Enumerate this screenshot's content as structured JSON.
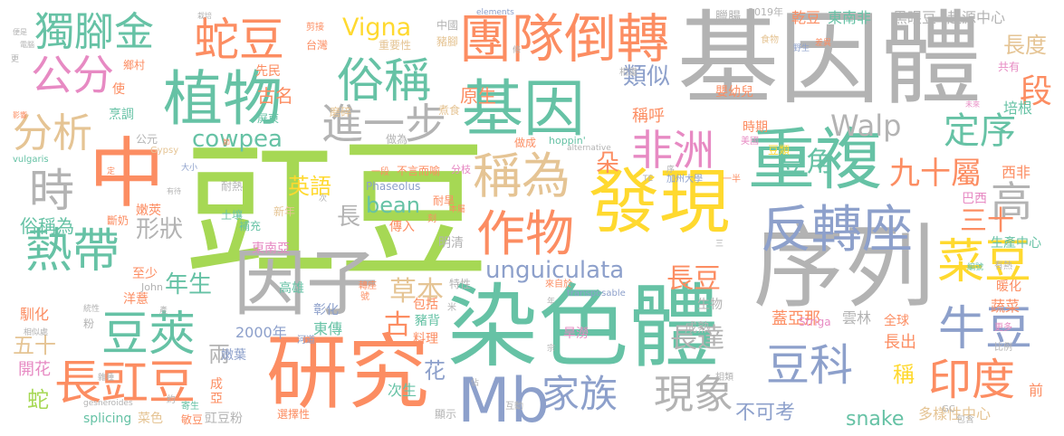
{
  "palette": {
    "green": "#66c2a5",
    "orange": "#fc8d62",
    "blue": "#8da0cb",
    "pink": "#e78ac3",
    "lime": "#a6d854",
    "yellow": "#ffd92f",
    "tan": "#e5c494",
    "gray": "#b3b3b3"
  },
  "words": [
    {
      "text": "豇豆",
      "color": "#a6d854"
    },
    {
      "text": "中",
      "color": "#fc8d62"
    },
    {
      "text": "基因體",
      "color": "#b3b3b3"
    },
    {
      "text": "染色體",
      "color": "#66c2a5"
    },
    {
      "text": "序列",
      "color": "#b3b3b3"
    },
    {
      "text": "發現",
      "color": "#ffd92f"
    },
    {
      "text": "研究",
      "color": "#fc8d62"
    },
    {
      "text": "團隊倒轉",
      "color": "#fc8d62"
    },
    {
      "text": "基因",
      "color": "#66c2a5"
    },
    {
      "text": "重複",
      "color": "#66c2a5"
    },
    {
      "text": "植物",
      "color": "#66c2a5"
    },
    {
      "text": "因子",
      "color": "#b3b3b3"
    },
    {
      "text": "Mb",
      "color": "#8da0cb"
    },
    {
      "text": "反轉座",
      "color": "#8da0cb"
    },
    {
      "text": "作物",
      "color": "#fc8d62"
    },
    {
      "text": "稱為",
      "color": "#e5c494"
    },
    {
      "text": "長豇豆",
      "color": "#fc8d62"
    },
    {
      "text": "豆莢",
      "color": "#66c2a5"
    },
    {
      "text": "熱帶",
      "color": "#66c2a5"
    },
    {
      "text": "蛇豆",
      "color": "#fc8d62"
    },
    {
      "text": "俗稱",
      "color": "#66c2a5"
    },
    {
      "text": "進一步",
      "color": "#b3b3b3"
    },
    {
      "text": "非洲",
      "color": "#e78ac3"
    },
    {
      "text": "菜豆",
      "color": "#ffd92f"
    },
    {
      "text": "牛豆",
      "color": "#8da0cb"
    },
    {
      "text": "印度",
      "color": "#fc8d62"
    },
    {
      "text": "豆科",
      "color": "#8da0cb"
    },
    {
      "text": "現象",
      "color": "#b3b3b3"
    },
    {
      "text": "家族",
      "color": "#8da0cb"
    },
    {
      "text": "獨腳金",
      "color": "#66c2a5"
    },
    {
      "text": "公分",
      "color": "#e78ac3"
    },
    {
      "text": "分析",
      "color": "#e5c494"
    },
    {
      "text": "時",
      "color": "#b3b3b3"
    },
    {
      "text": "定序",
      "color": "#66c2a5"
    },
    {
      "text": "九十屬",
      "color": "#fc8d62"
    },
    {
      "text": "高",
      "color": "#b3b3b3"
    },
    {
      "text": "段",
      "color": "#fc8d62"
    },
    {
      "text": "長度",
      "color": "#e5c494"
    },
    {
      "text": "Vigna",
      "color": "#ffd92f"
    },
    {
      "text": "Walp",
      "color": "#b3b3b3"
    },
    {
      "text": "cowpea",
      "color": "#66c2a5"
    },
    {
      "text": "unguiculata",
      "color": "#8da0cb"
    },
    {
      "text": "bean",
      "color": "#66c2a5"
    },
    {
      "text": "snake",
      "color": "#66c2a5"
    },
    {
      "text": "英語",
      "color": "#ffd92f"
    },
    {
      "text": "長",
      "color": "#b3b3b3"
    },
    {
      "text": "形狀",
      "color": "#b3b3b3"
    },
    {
      "text": "俗稱為",
      "color": "#66c2a5"
    },
    {
      "text": "年生",
      "color": "#66c2a5"
    },
    {
      "text": "草本",
      "color": "#e5c494"
    },
    {
      "text": "古",
      "color": "#fc8d62"
    },
    {
      "text": "長豆",
      "color": "#fc8d62"
    },
    {
      "text": "長達",
      "color": "#b3b3b3"
    },
    {
      "text": "三十",
      "color": "#fc8d62"
    },
    {
      "text": "不可考",
      "color": "#8da0cb"
    },
    {
      "text": "五十",
      "color": "#e5c494"
    },
    {
      "text": "兩",
      "color": "#b3b3b3"
    },
    {
      "text": "豆角",
      "color": "#66c2a5"
    },
    {
      "text": "類似",
      "color": "#8da0cb"
    },
    {
      "text": "古名",
      "color": "#fc8d62"
    },
    {
      "text": "原生",
      "color": "#fc8d62"
    },
    {
      "text": "稱呼",
      "color": "#fc8d62"
    },
    {
      "text": "朵",
      "color": "#fc8d62"
    },
    {
      "text": "花",
      "color": "#8da0cb"
    },
    {
      "text": "稱",
      "color": "#ffd92f"
    },
    {
      "text": "蛇",
      "color": "#a6d854"
    },
    {
      "text": "開花",
      "color": "#e78ac3"
    },
    {
      "text": "馴化",
      "color": "#fc8d62"
    },
    {
      "text": "2000年",
      "color": "#8da0cb"
    },
    {
      "text": "東傳",
      "color": "#66c2a5"
    },
    {
      "text": "蓋亞那",
      "color": "#fc8d62"
    },
    {
      "text": "長出",
      "color": "#fc8d62"
    },
    {
      "text": "雲林",
      "color": "#b3b3b3"
    },
    {
      "text": "全球",
      "color": "#fc8d62"
    },
    {
      "text": "蔬菜",
      "color": "#fc8d62"
    },
    {
      "text": "多樣性中心",
      "color": "#e5c494"
    },
    {
      "text": "生產中心",
      "color": "#66c2a5"
    },
    {
      "text": "西非",
      "color": "#fc8d62"
    },
    {
      "text": "巴西",
      "color": "#e78ac3"
    },
    {
      "text": "東南非",
      "color": "#66c2a5"
    },
    {
      "text": "乾豆",
      "color": "#fc8d62"
    },
    {
      "text": "黑眼豆",
      "color": "#b3b3b3"
    },
    {
      "text": "起源中心",
      "color": "#b3b3b3"
    },
    {
      "text": "臘腸",
      "color": "#b3b3b3"
    },
    {
      "text": "2019年",
      "color": "#b3b3b3"
    },
    {
      "text": "時期",
      "color": "#fc8d62"
    },
    {
      "text": "豆類",
      "color": "#ffd92f"
    },
    {
      "text": "美國",
      "color": "#e78ac3"
    },
    {
      "text": "嬰幼兒",
      "color": "#fc8d62"
    },
    {
      "text": "培根",
      "color": "#66c2a5"
    },
    {
      "text": "共有",
      "color": "#e78ac3"
    },
    {
      "text": "前",
      "color": "#fc8d62"
    },
    {
      "text": "暖化",
      "color": "#fc8d62"
    },
    {
      "text": "有熱",
      "color": "#b3b3b3"
    },
    {
      "text": "Striga",
      "color": "#e78ac3"
    },
    {
      "text": "旱澇",
      "color": "#e78ac3"
    },
    {
      "text": "更多",
      "color": "#e78ac3"
    },
    {
      "text": "比例",
      "color": "#b3b3b3"
    },
    {
      "text": "相類",
      "color": "#b3b3b3"
    },
    {
      "text": "包含",
      "color": "#b3b3b3"
    },
    {
      "text": "GC",
      "color": "#b3b3b3"
    },
    {
      "text": "互動",
      "color": "#b3b3b3"
    },
    {
      "text": "顯示",
      "color": "#b3b3b3"
    },
    {
      "text": "次生",
      "color": "#66c2a5"
    },
    {
      "text": "敏豆",
      "color": "#fc8d62"
    },
    {
      "text": "菜色",
      "color": "#e5c494"
    },
    {
      "text": "豇豆粉",
      "color": "#b3b3b3"
    },
    {
      "text": "選擇性",
      "color": "#fc8d62"
    },
    {
      "text": "splicing",
      "color": "#66c2a5"
    },
    {
      "text": "gesneroides",
      "color": "#b3b3b3"
    },
    {
      "text": "約",
      "color": "#b3b3b3"
    },
    {
      "text": "寄生",
      "color": "#66c2a5"
    },
    {
      "text": "亞",
      "color": "#fc8d62"
    },
    {
      "text": "成",
      "color": "#fc8d62"
    },
    {
      "text": "嫩葉",
      "color": "#8da0cb"
    },
    {
      "text": "河道",
      "color": "#8da0cb"
    },
    {
      "text": "彰化",
      "color": "#8da0cb"
    },
    {
      "text": "高雄",
      "color": "#66c2a5"
    },
    {
      "text": "成熟",
      "color": "#b3b3b3"
    },
    {
      "text": "豬背",
      "color": "#66c2a5"
    },
    {
      "text": "料理",
      "color": "#fc8d62"
    },
    {
      "text": "包括",
      "color": "#fc8d62"
    },
    {
      "text": "生物",
      "color": "#b3b3b3"
    },
    {
      "text": "粉",
      "color": "#b3b3b3"
    },
    {
      "text": "洋薏",
      "color": "#fc8d62"
    },
    {
      "text": "至少",
      "color": "#fc8d62"
    },
    {
      "text": "John",
      "color": "#b3b3b3"
    },
    {
      "text": "東南亞",
      "color": "#e78ac3"
    },
    {
      "text": "補充",
      "color": "#66c2a5"
    },
    {
      "text": "土壤",
      "color": "#66c2a5"
    },
    {
      "text": "嫩莢",
      "color": "#fc8d62"
    },
    {
      "text": "斷奶",
      "color": "#fc8d62"
    },
    {
      "text": "新年",
      "color": "#e5c494"
    },
    {
      "text": "耐熱",
      "color": "#b3b3b3"
    },
    {
      "text": "Phaseolus",
      "color": "#8da0cb"
    },
    {
      "text": "傳入",
      "color": "#fc8d62"
    },
    {
      "text": "明清",
      "color": "#b3b3b3"
    },
    {
      "text": "刻",
      "color": "#fc8d62"
    },
    {
      "text": "耐旱",
      "color": "#fc8d62"
    },
    {
      "text": "特性",
      "color": "#b3b3b3"
    },
    {
      "text": "本屬",
      "color": "#fc8d62"
    },
    {
      "text": "轉座",
      "color": "#fc8d62"
    },
    {
      "text": "號",
      "color": "#fc8d62"
    },
    {
      "text": "米",
      "color": "#b3b3b3"
    },
    {
      "text": "來自於",
      "color": "#fc8d62"
    },
    {
      "text": "transposable",
      "color": "#8da0cb"
    },
    {
      "text": "一段",
      "color": "#fc8d62"
    },
    {
      "text": "不言而喻",
      "color": "#fc8d62"
    },
    {
      "text": "分枝",
      "color": "#e78ac3"
    },
    {
      "text": "加州大學",
      "color": "#8da0cb"
    },
    {
      "text": "一半",
      "color": "#fc8d62"
    },
    {
      "text": "TE",
      "color": "#b3b3b3"
    },
    {
      "text": "做成",
      "color": "#fc8d62"
    },
    {
      "text": "hoppin'",
      "color": "#66c2a5"
    },
    {
      "text": "alternative",
      "color": "#b3b3b3"
    },
    {
      "text": "做為",
      "color": "#b3b3b3"
    },
    {
      "text": "煮食",
      "color": "#e5c494"
    },
    {
      "text": "磨碎",
      "color": "#e5c494"
    },
    {
      "text": "屏東",
      "color": "#66c2a5"
    },
    {
      "text": "公元",
      "color": "#b3b3b3"
    },
    {
      "text": "烹調",
      "color": "#66c2a5"
    },
    {
      "text": "Gypsy",
      "color": "#e5c494"
    },
    {
      "text": "vulgaris",
      "color": "#66c2a5"
    },
    {
      "text": "大小",
      "color": "#8da0cb"
    },
    {
      "text": "有待",
      "color": "#b3b3b3"
    },
    {
      "text": "節",
      "color": "#fc8d62"
    },
    {
      "text": "影響",
      "color": "#fc8d62"
    },
    {
      "text": "定",
      "color": "#fc8d62"
    },
    {
      "text": "先民",
      "color": "#fc8d62"
    },
    {
      "text": "台灣",
      "color": "#fc8d62"
    },
    {
      "text": "重要性",
      "color": "#e5c494"
    },
    {
      "text": "豬腳",
      "color": "#e5c494"
    },
    {
      "text": "中國",
      "color": "#b3b3b3"
    },
    {
      "text": "剪接",
      "color": "#fc8d62"
    },
    {
      "text": "栽培",
      "color": "#b3b3b3"
    },
    {
      "text": "elements",
      "color": "#8da0cb"
    },
    {
      "text": "條",
      "color": "#b3b3b3"
    },
    {
      "text": "相繼",
      "color": "#b3b3b3"
    },
    {
      "text": "食物",
      "color": "#e5c494"
    },
    {
      "text": "野生",
      "color": "#8da0cb"
    },
    {
      "text": "差異",
      "color": "#fc8d62"
    },
    {
      "text": "未來",
      "color": "#e78ac3"
    },
    {
      "text": "鄉村",
      "color": "#fc8d62"
    },
    {
      "text": "使",
      "color": "#fc8d62"
    },
    {
      "text": "電腦",
      "color": "#b3b3b3"
    },
    {
      "text": "更",
      "color": "#b3b3b3"
    },
    {
      "text": "便是",
      "color": "#b3b3b3"
    },
    {
      "text": "序",
      "color": "#b3b3b3"
    },
    {
      "text": "年",
      "color": "#b3b3b3"
    },
    {
      "text": "次",
      "color": "#b3b3b3"
    },
    {
      "text": "三",
      "color": "#b3b3b3"
    },
    {
      "text": "宗",
      "color": "#b3b3b3"
    },
    {
      "text": "佔",
      "color": "#b3b3b3"
    },
    {
      "text": "雜種",
      "color": "#b3b3b3"
    },
    {
      "text": "相似處",
      "color": "#b3b3b3"
    },
    {
      "text": "編號",
      "color": "#66c2a5"
    },
    {
      "text": "統性",
      "color": "#b3b3b3"
    },
    {
      "text": "產",
      "color": "#b3b3b3"
    }
  ]
}
